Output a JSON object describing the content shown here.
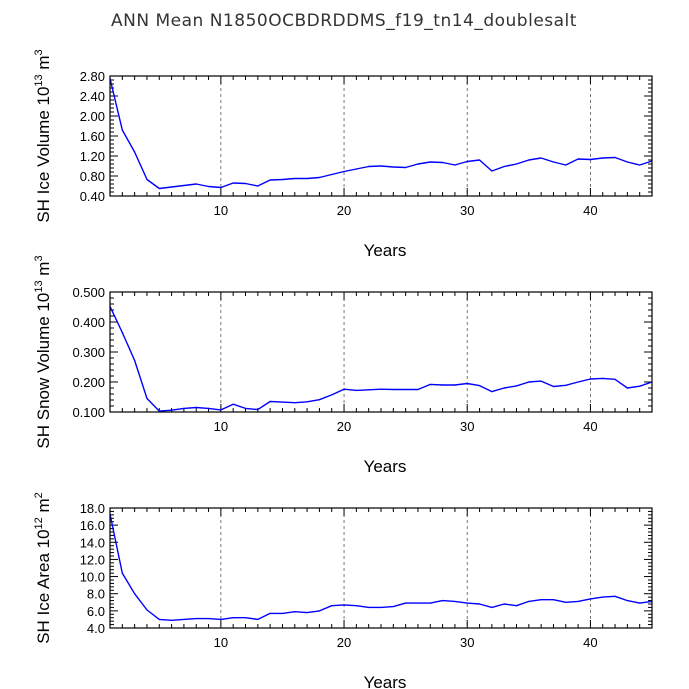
{
  "title": "ANN Mean N1850OCBDRDDMS_f19_tn14_doublesalt",
  "colors": {
    "line": "#0000ff",
    "axis": "#000000",
    "grid": "#555555"
  },
  "chart_data": [
    {
      "type": "line",
      "xlabel": "Years",
      "ylabel": {
        "text": "SH Ice Volume 10",
        "exp": "13",
        "unit": "m",
        "unit_exp": "3"
      },
      "xlim": [
        1,
        45
      ],
      "ylim": [
        0.4,
        2.8
      ],
      "xticks": [
        10,
        20,
        30,
        40
      ],
      "xtick_labels": [
        "10",
        "20",
        "30",
        "40"
      ],
      "yticks": [
        0.4,
        0.8,
        1.2,
        1.6,
        2.0,
        2.4,
        2.8
      ],
      "ytick_labels": [
        "0.40",
        "0.80",
        "1.20",
        "1.60",
        "2.00",
        "2.40",
        "2.80"
      ],
      "grid": "vertical dashed at x ticks",
      "x": [
        1,
        2,
        3,
        4,
        5,
        6,
        7,
        8,
        9,
        10,
        11,
        12,
        13,
        14,
        15,
        16,
        17,
        18,
        19,
        20,
        21,
        22,
        23,
        24,
        25,
        26,
        27,
        28,
        29,
        30,
        31,
        32,
        33,
        34,
        35,
        36,
        37,
        38,
        39,
        40,
        41,
        42,
        43,
        44,
        45
      ],
      "values": [
        2.75,
        1.72,
        1.28,
        0.73,
        0.55,
        0.58,
        0.61,
        0.64,
        0.59,
        0.57,
        0.66,
        0.65,
        0.6,
        0.72,
        0.73,
        0.75,
        0.75,
        0.77,
        0.83,
        0.89,
        0.94,
        0.99,
        1.0,
        0.98,
        0.97,
        1.04,
        1.08,
        1.07,
        1.02,
        1.09,
        1.12,
        0.9,
        0.99,
        1.04,
        1.12,
        1.16,
        1.08,
        1.02,
        1.14,
        1.13,
        1.16,
        1.17,
        1.08,
        1.02,
        1.1
      ]
    },
    {
      "type": "line",
      "xlabel": "Years",
      "ylabel": {
        "text": "SH Snow Volume 10",
        "exp": "13",
        "unit": "m",
        "unit_exp": "3"
      },
      "xlim": [
        1,
        45
      ],
      "ylim": [
        0.1,
        0.5
      ],
      "xticks": [
        10,
        20,
        30,
        40
      ],
      "xtick_labels": [
        "10",
        "20",
        "30",
        "40"
      ],
      "yticks": [
        0.1,
        0.2,
        0.3,
        0.4,
        0.5
      ],
      "ytick_labels": [
        "0.100",
        "0.200",
        "0.300",
        "0.400",
        "0.500"
      ],
      "grid": "vertical dashed at x ticks",
      "x": [
        1,
        2,
        3,
        4,
        5,
        6,
        7,
        8,
        9,
        10,
        11,
        12,
        13,
        14,
        15,
        16,
        17,
        18,
        19,
        20,
        21,
        22,
        23,
        24,
        25,
        26,
        27,
        28,
        29,
        30,
        31,
        32,
        33,
        34,
        35,
        36,
        37,
        38,
        39,
        40,
        41,
        42,
        43,
        44,
        45
      ],
      "values": [
        0.452,
        0.365,
        0.272,
        0.145,
        0.103,
        0.106,
        0.112,
        0.115,
        0.112,
        0.107,
        0.126,
        0.112,
        0.108,
        0.135,
        0.133,
        0.131,
        0.134,
        0.141,
        0.157,
        0.176,
        0.172,
        0.174,
        0.176,
        0.175,
        0.175,
        0.175,
        0.192,
        0.19,
        0.19,
        0.195,
        0.188,
        0.168,
        0.18,
        0.187,
        0.2,
        0.203,
        0.185,
        0.189,
        0.2,
        0.21,
        0.212,
        0.209,
        0.18,
        0.186,
        0.2
      ]
    },
    {
      "type": "line",
      "xlabel": "Years",
      "ylabel": {
        "text": "SH Ice Area 10",
        "exp": "12",
        "unit": "m",
        "unit_exp": "2"
      },
      "xlim": [
        1,
        45
      ],
      "ylim": [
        4.0,
        18.0
      ],
      "xticks": [
        10,
        20,
        30,
        40
      ],
      "xtick_labels": [
        "10",
        "20",
        "30",
        "40"
      ],
      "yticks": [
        4.0,
        6.0,
        8.0,
        10.0,
        12.0,
        14.0,
        16.0,
        18.0
      ],
      "ytick_labels": [
        "4.0",
        "6.0",
        "8.0",
        "10.0",
        "12.0",
        "14.0",
        "16.0",
        "18.0"
      ],
      "grid": "vertical dashed at x ticks",
      "x": [
        1,
        2,
        3,
        4,
        5,
        6,
        7,
        8,
        9,
        10,
        11,
        12,
        13,
        14,
        15,
        16,
        17,
        18,
        19,
        20,
        21,
        22,
        23,
        24,
        25,
        26,
        27,
        28,
        29,
        30,
        31,
        32,
        33,
        34,
        35,
        36,
        37,
        38,
        39,
        40,
        41,
        42,
        43,
        44,
        45
      ],
      "values": [
        17.3,
        10.4,
        8.0,
        6.1,
        5.0,
        4.9,
        5.0,
        5.1,
        5.1,
        5.0,
        5.2,
        5.2,
        5.0,
        5.7,
        5.7,
        5.9,
        5.8,
        6.0,
        6.6,
        6.7,
        6.6,
        6.4,
        6.4,
        6.5,
        6.9,
        6.9,
        6.9,
        7.2,
        7.1,
        6.9,
        6.8,
        6.4,
        6.8,
        6.6,
        7.1,
        7.3,
        7.3,
        7.0,
        7.1,
        7.4,
        7.6,
        7.7,
        7.2,
        6.9,
        7.1
      ]
    }
  ]
}
